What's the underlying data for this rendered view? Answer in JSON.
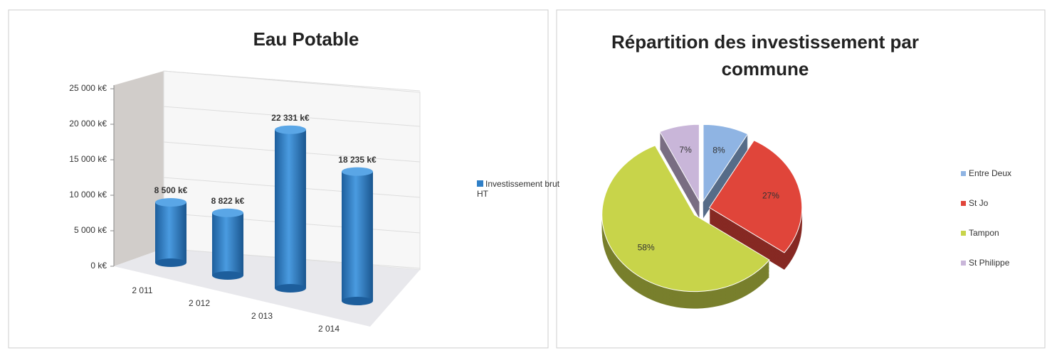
{
  "chart_data": [
    {
      "type": "bar",
      "title": "Eau Potable",
      "categories": [
        "2 011",
        "2 012",
        "2 013",
        "2 014"
      ],
      "series": [
        {
          "name": "Investissement brut HT",
          "color": "#2f7fc7",
          "values": [
            8500,
            8822,
            22331,
            18235
          ],
          "value_labels": [
            "8 500 k€",
            "8 822 k€",
            "22 331 k€",
            "18 235 k€"
          ]
        }
      ],
      "ylim": [
        0,
        25000
      ],
      "yticks": [
        {
          "value": 0,
          "label": "0 k€"
        },
        {
          "value": 5000,
          "label": "5 000 k€"
        },
        {
          "value": 10000,
          "label": "10 000 k€"
        },
        {
          "value": 15000,
          "label": "15 000 k€"
        },
        {
          "value": 20000,
          "label": "20 000 k€"
        },
        {
          "value": 25000,
          "label": "25 000 k€"
        }
      ],
      "grid": true,
      "legend": "right"
    },
    {
      "type": "pie",
      "title": "Répartition des investissement par commune",
      "categories": [
        "Entre Deux",
        "St Jo",
        "Tampon",
        "St Philippe"
      ],
      "values": [
        8,
        27,
        58,
        7
      ],
      "value_labels": [
        "8%",
        "27%",
        "58%",
        "7%"
      ],
      "colors": [
        "#8fb4e3",
        "#e0453a",
        "#c8d44a",
        "#c9b6d9"
      ],
      "legend": "right"
    }
  ]
}
